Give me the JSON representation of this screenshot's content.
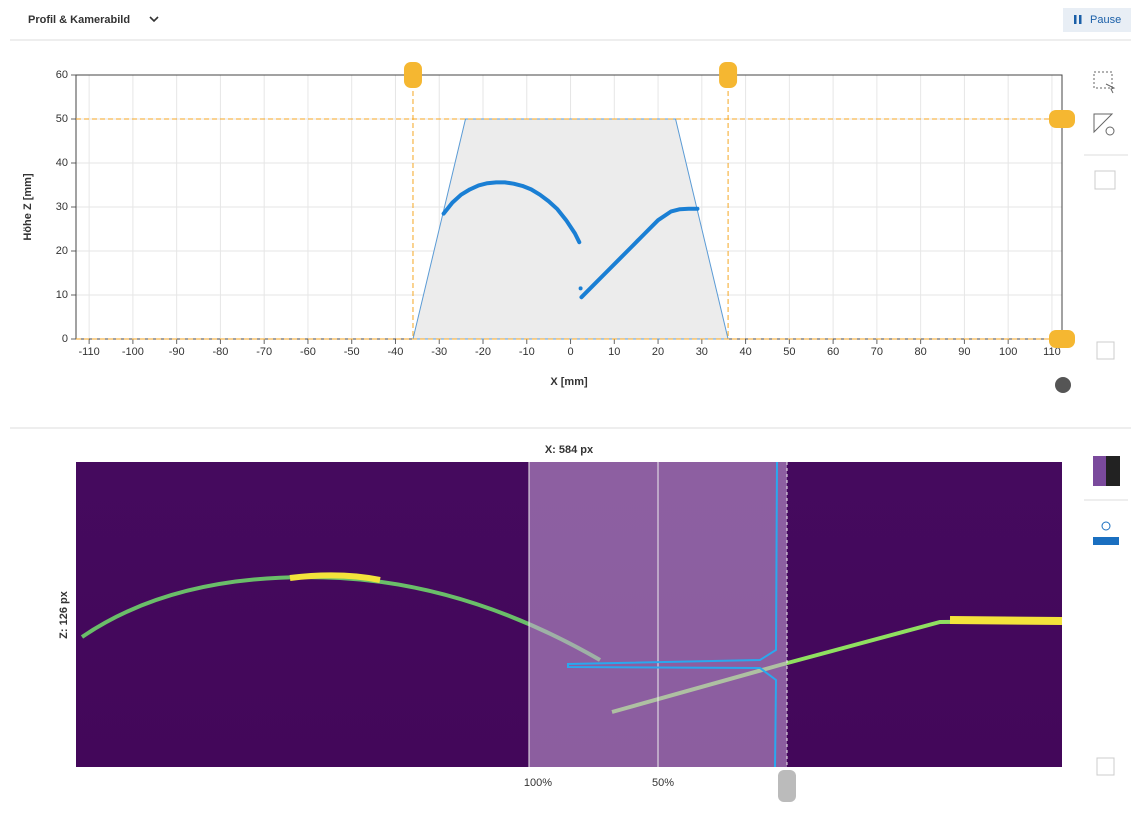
{
  "header": {
    "title": "Profil & Kamerabild",
    "pause": "Pause"
  },
  "chart_data": {
    "type": "line",
    "x_label": "X [mm]",
    "y_label": "Höhe Z [mm]",
    "xlim": [
      -113,
      112.3
    ],
    "ylim": [
      0,
      60
    ],
    "xticks": [
      -110,
      -100,
      -90,
      -80,
      -70,
      -60,
      -50,
      -40,
      -30,
      -20,
      -10,
      0,
      10,
      20,
      30,
      40,
      50,
      60,
      70,
      80,
      90,
      100,
      110
    ],
    "yticks": [
      0,
      10,
      20,
      30,
      40,
      50,
      60
    ],
    "grid": true,
    "x_limits": [
      -36,
      36
    ],
    "z_limits": [
      0,
      50
    ],
    "field_of_view": {
      "x": [
        -36,
        -24,
        24,
        36
      ],
      "values": [
        0,
        50,
        50,
        0
      ]
    },
    "series": [
      {
        "color": "#1a7fd4",
        "x": [
          -29,
          -27,
          -25,
          -23,
          -21,
          -19,
          -17,
          -15,
          -13,
          -11,
          -9,
          -7,
          -5,
          -3,
          -1,
          1,
          2
        ],
        "values": [
          28.5,
          31,
          32.8,
          34,
          34.9,
          35.4,
          35.6,
          35.6,
          35.3,
          34.8,
          34,
          32.8,
          31.3,
          29.5,
          27,
          24,
          22
        ]
      },
      {
        "color": "#1a7fd4",
        "x": [
          2.5,
          5,
          8,
          11,
          14,
          17,
          20,
          23,
          25,
          27,
          29
        ],
        "values": [
          9.5,
          12,
          15,
          18,
          21,
          24,
          27,
          29,
          29.5,
          29.6,
          29.6
        ]
      },
      {
        "color": "#1a7fd4",
        "x": [
          2.3
        ],
        "values": [
          11.5
        ]
      }
    ]
  },
  "camera": {
    "x_label": "X: 584 px",
    "z_label": "Z: 126 px",
    "scale_labels": [
      "100%",
      "50%"
    ]
  }
}
